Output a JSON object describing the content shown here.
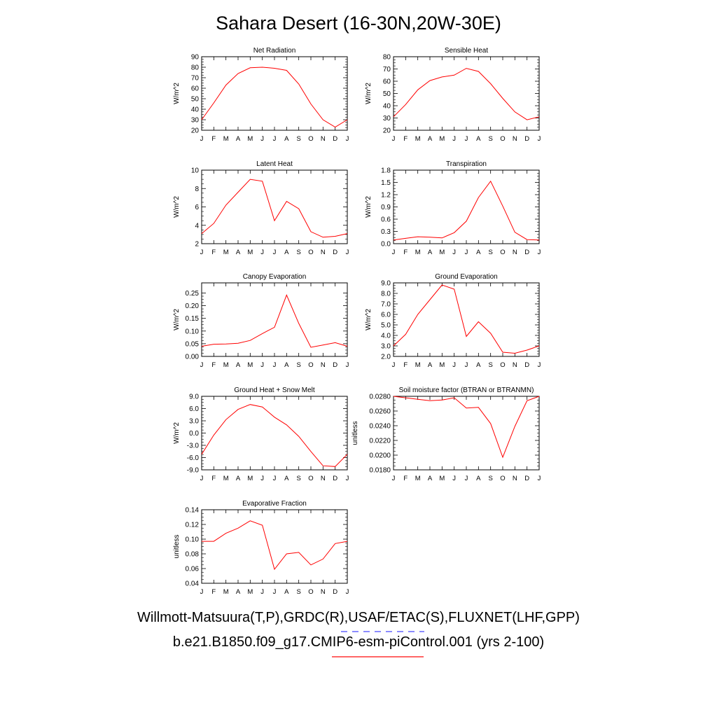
{
  "page_title": "Sahara Desert (16-30N,20W-30E)",
  "legend": [
    {
      "label": "Willmott-Matsuura(T,P),GRDC(R),USAF/ETAC(S),FLUXNET(LHF,GPP)",
      "color": "#6666ff",
      "dash": "dashed"
    },
    {
      "label": "b.e21.B1850.f09_g17.CMIP6-esm-piControl.001 (yrs 2-100)",
      "color": "#ff3333",
      "dash": "solid"
    }
  ],
  "series_color": "#ff0000",
  "chart_data": [
    {
      "type": "line",
      "title": "Net Radiation",
      "ylabel": "W/m^2",
      "categories": [
        "J",
        "F",
        "M",
        "A",
        "M",
        "J",
        "J",
        "A",
        "S",
        "O",
        "N",
        "D",
        "J"
      ],
      "ylim": [
        20,
        90
      ],
      "yticks": [
        "20",
        "30",
        "40",
        "50",
        "60",
        "70",
        "80",
        "90"
      ],
      "values": [
        30,
        46,
        63,
        74,
        79.5,
        80,
        79,
        77,
        64,
        45,
        30,
        23,
        30
      ]
    },
    {
      "type": "line",
      "title": "Sensible Heat",
      "ylabel": "W/m^2",
      "categories": [
        "J",
        "F",
        "M",
        "A",
        "M",
        "J",
        "J",
        "A",
        "S",
        "O",
        "N",
        "D",
        "J"
      ],
      "ylim": [
        20,
        80
      ],
      "yticks": [
        "20",
        "30",
        "40",
        "50",
        "60",
        "70",
        "80"
      ],
      "values": [
        31,
        41,
        53,
        60.5,
        63.5,
        65,
        70.5,
        68,
        58,
        46,
        35,
        28.5,
        31
      ]
    },
    {
      "type": "line",
      "title": "Latent Heat",
      "ylabel": "W/m^2",
      "categories": [
        "J",
        "F",
        "M",
        "A",
        "M",
        "J",
        "J",
        "A",
        "S",
        "O",
        "N",
        "D",
        "J"
      ],
      "ylim": [
        2,
        10
      ],
      "yticks": [
        "2",
        "4",
        "6",
        "8",
        "10"
      ],
      "values": [
        3.1,
        4.2,
        6.2,
        7.6,
        9.0,
        8.8,
        4.5,
        6.6,
        5.8,
        3.3,
        2.7,
        2.8,
        3.1
      ]
    },
    {
      "type": "line",
      "title": "Transpiration",
      "ylabel": "W/m^2",
      "categories": [
        "J",
        "F",
        "M",
        "A",
        "M",
        "J",
        "J",
        "A",
        "S",
        "O",
        "N",
        "D",
        "J"
      ],
      "ylim": [
        0,
        1.8
      ],
      "yticks": [
        "0.0",
        "0.3",
        "0.6",
        "0.9",
        "1.2",
        "1.5",
        "1.8"
      ],
      "values": [
        0.09,
        0.13,
        0.17,
        0.16,
        0.14,
        0.27,
        0.55,
        1.13,
        1.53,
        0.92,
        0.28,
        0.1,
        0.09
      ]
    },
    {
      "type": "line",
      "title": "Canopy Evaporation",
      "ylabel": "W/m^2",
      "categories": [
        "J",
        "F",
        "M",
        "A",
        "M",
        "J",
        "J",
        "A",
        "S",
        "O",
        "N",
        "D",
        "J"
      ],
      "ylim": [
        0,
        0.29
      ],
      "yticks": [
        "0.00",
        "0.05",
        "0.10",
        "0.15",
        "0.20",
        "0.25"
      ],
      "values": [
        0.04,
        0.048,
        0.049,
        0.052,
        0.063,
        0.09,
        0.115,
        0.242,
        0.13,
        0.036,
        0.045,
        0.054,
        0.04
      ]
    },
    {
      "type": "line",
      "title": "Ground Evaporation",
      "ylabel": "W/m^2",
      "categories": [
        "J",
        "F",
        "M",
        "A",
        "M",
        "J",
        "J",
        "A",
        "S",
        "O",
        "N",
        "D",
        "J"
      ],
      "ylim": [
        2,
        9
      ],
      "yticks": [
        "2.0",
        "3.0",
        "4.0",
        "5.0",
        "6.0",
        "7.0",
        "8.0",
        "9.0"
      ],
      "values": [
        3.0,
        4.1,
        6.0,
        7.4,
        8.8,
        8.4,
        3.9,
        5.3,
        4.2,
        2.4,
        2.3,
        2.6,
        3.0
      ]
    },
    {
      "type": "line",
      "title": "Ground Heat + Snow Melt",
      "ylabel": "W/m^2",
      "categories": [
        "J",
        "F",
        "M",
        "A",
        "M",
        "J",
        "J",
        "A",
        "S",
        "O",
        "N",
        "D",
        "J"
      ],
      "ylim": [
        -9,
        9
      ],
      "yticks": [
        "-9.0",
        "-6.0",
        "-3.0",
        "0.0",
        "3.0",
        "6.0",
        "9.0"
      ],
      "values": [
        -5.2,
        -0.5,
        3.3,
        5.8,
        7.0,
        6.4,
        3.9,
        2.0,
        -0.8,
        -4.5,
        -8.0,
        -8.2,
        -5.2
      ]
    },
    {
      "type": "line",
      "title": "Soil moisture factor (BTRAN or BTRANMN)",
      "ylabel": "unitless",
      "categories": [
        "J",
        "F",
        "M",
        "A",
        "M",
        "J",
        "J",
        "A",
        "S",
        "O",
        "N",
        "D",
        "J"
      ],
      "ylim": [
        0.018,
        0.028
      ],
      "yticks": [
        "0.0180",
        "0.0200",
        "0.0220",
        "0.0240",
        "0.0260",
        "0.0280"
      ],
      "values": [
        0.028,
        0.0278,
        0.0276,
        0.0274,
        0.0275,
        0.0278,
        0.0264,
        0.0265,
        0.0243,
        0.0197,
        0.0239,
        0.0274,
        0.028
      ]
    },
    {
      "type": "line",
      "title": "Evaporative Fraction",
      "ylabel": "unitless",
      "categories": [
        "J",
        "F",
        "M",
        "A",
        "M",
        "J",
        "J",
        "A",
        "S",
        "O",
        "N",
        "D",
        "J"
      ],
      "ylim": [
        0.04,
        0.14
      ],
      "yticks": [
        "0.04",
        "0.06",
        "0.08",
        "0.10",
        "0.12",
        "0.14"
      ],
      "values": [
        0.097,
        0.097,
        0.108,
        0.115,
        0.125,
        0.119,
        0.059,
        0.08,
        0.082,
        0.065,
        0.073,
        0.094,
        0.097
      ]
    }
  ]
}
